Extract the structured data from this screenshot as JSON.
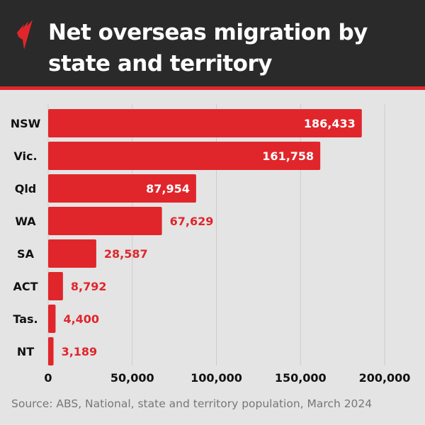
{
  "header": {
    "title": "Net overseas migration by state and territory",
    "logo": "sbs-logo-icon"
  },
  "colors": {
    "bar": "#e0262b",
    "header": "#2a2a2a",
    "background": "#e4e4e4",
    "grid": "#cccccc"
  },
  "chart_data": {
    "type": "bar",
    "orientation": "horizontal",
    "title": "Net overseas migration by state and territory",
    "categories": [
      "NSW",
      "Vic.",
      "Qld",
      "WA",
      "SA",
      "ACT",
      "Tas.",
      "NT"
    ],
    "values": [
      186433,
      161758,
      87954,
      67629,
      28587,
      8792,
      4400,
      3189
    ],
    "value_labels": [
      "186,433",
      "161,758",
      "87,954",
      "67,629",
      "28,587",
      "8,792",
      "4,400",
      "3,189"
    ],
    "xlim": [
      0,
      200000
    ],
    "xticks": [
      0,
      50000,
      100000,
      150000,
      200000
    ],
    "xtick_labels": [
      "0",
      "50,000",
      "100,000",
      "150,000",
      "200,000"
    ],
    "grid": "vertical",
    "xlabel": "",
    "ylabel": ""
  },
  "footer": {
    "source": "Source: ABS, National, state and territory population, March 2024"
  }
}
